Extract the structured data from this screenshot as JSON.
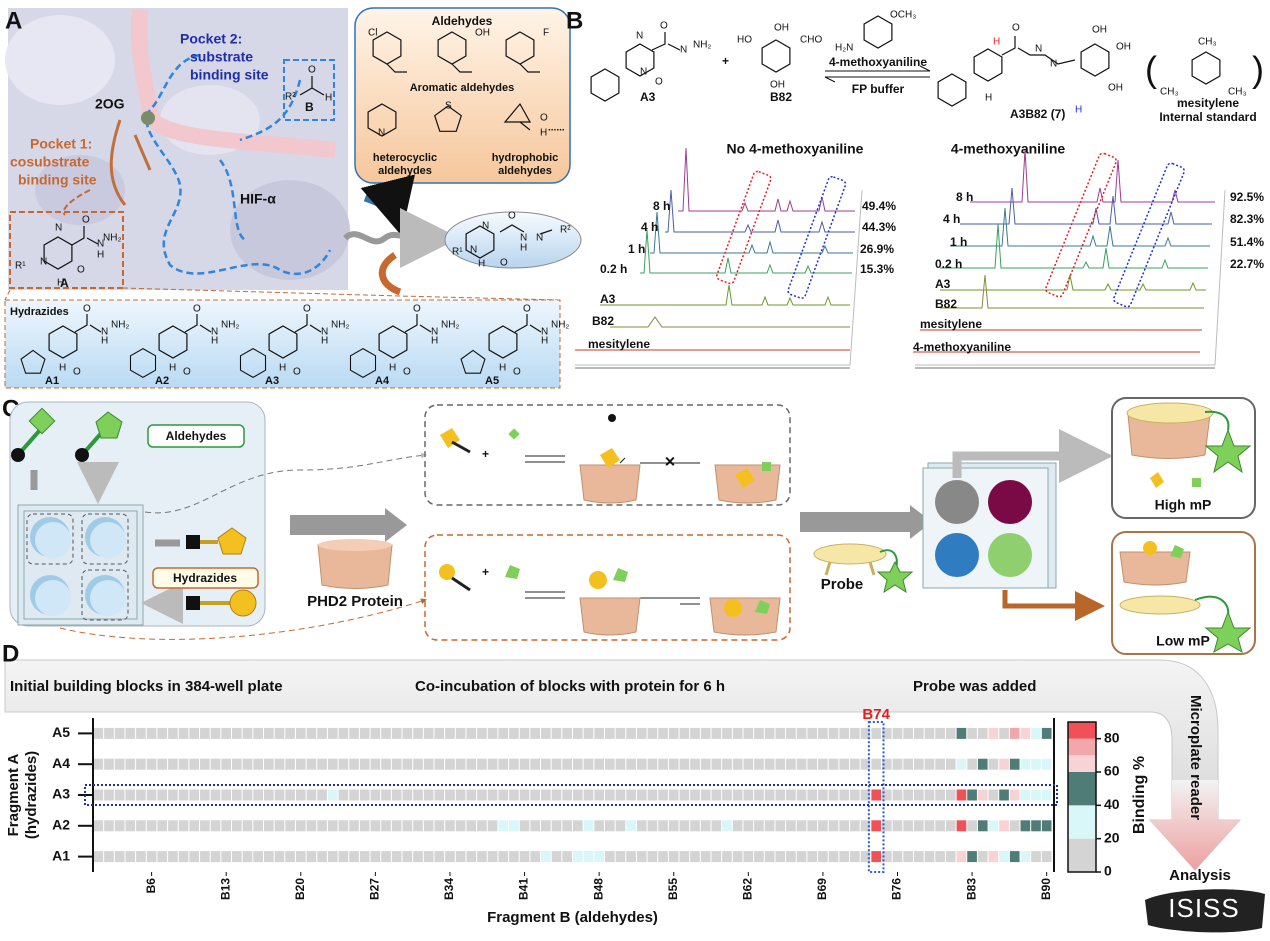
{
  "panel_a": {
    "label": "A",
    "pocket2": [
      "Pocket 2:",
      "substrate",
      "binding site"
    ],
    "cofactor": "2OG",
    "pocket1": [
      "Pocket 1:",
      "cosubstrate",
      "binding site"
    ],
    "protein": "HIF-α",
    "core_a": {
      "name": "A",
      "atoms": [
        "R¹",
        "N",
        "N",
        "H",
        "O",
        "O",
        "N",
        "H",
        "NH₂"
      ]
    },
    "core_b": {
      "name": "B",
      "atoms": [
        "R²",
        "O",
        "H"
      ]
    },
    "aldehydes": {
      "title": "Aldehydes",
      "atoms": [
        "Cl",
        "OH",
        "F",
        "N",
        "S",
        "O",
        "H"
      ],
      "aromatic": "Aromatic aldehydes",
      "heterocyclic": [
        "heterocyclic",
        "aldehydes"
      ],
      "hydrophobic": [
        "hydrophobic",
        "aldehydes"
      ]
    },
    "product_atoms": [
      "R¹",
      "N",
      "N",
      "H",
      "O",
      "O",
      "N",
      "H",
      "N",
      "R²"
    ],
    "hydrazides": {
      "title": "Hydrazides",
      "atoms": [
        "O",
        "N",
        "H",
        "NH₂"
      ],
      "names": [
        "A1",
        "A2",
        "A3",
        "A4",
        "A5"
      ]
    }
  },
  "panel_b": {
    "label": "B",
    "reactant_a": "A3",
    "reactant_b": "B82",
    "plus": "+",
    "b82_atoms": [
      "HO",
      "OH",
      "OH",
      "CHO"
    ],
    "reagent": "4-methoxyaniline",
    "reagent_atoms": [
      "OCH₃",
      "H₂N"
    ],
    "buffer": "FP buffer",
    "product": "A3B82 (7)",
    "product_atoms": [
      "H",
      "H",
      "O",
      "OH",
      "OH",
      "OH",
      "N",
      "N",
      "H"
    ],
    "standard": {
      "name": "mesitylene",
      "role": "Internal standard",
      "atoms": [
        "CH₃"
      ]
    },
    "left": {
      "title": "No 4-methoxyaniline",
      "traces": [
        {
          "name": "8 h",
          "yield": "49.4%"
        },
        {
          "name": "4 h",
          "yield": "44.3%"
        },
        {
          "name": "1 h",
          "yield": "26.9%"
        },
        {
          "name": "0.2 h",
          "yield": "15.3%"
        },
        {
          "name": "A3"
        },
        {
          "name": "B82"
        },
        {
          "name": "mesitylene"
        }
      ]
    },
    "right": {
      "title": "4-methoxyaniline",
      "traces": [
        {
          "name": "8 h",
          "yield": "92.5%"
        },
        {
          "name": "4 h",
          "yield": "82.3%"
        },
        {
          "name": "1 h",
          "yield": "51.4%"
        },
        {
          "name": "0.2 h",
          "yield": "22.7%"
        },
        {
          "name": "A3"
        },
        {
          "name": "B82"
        },
        {
          "name": "mesitylene"
        },
        {
          "name": "4-methoxyaniline"
        }
      ]
    }
  },
  "panel_c": {
    "label": "C",
    "aldehydes": "Aldehydes",
    "hydrazides": "Hydrazides",
    "protein": "PHD2 Protein",
    "probe": "Probe",
    "high": "High mP",
    "low": "Low mP",
    "plus": "+"
  },
  "panel_d": {
    "label": "D",
    "steps": [
      "Initial building blocks in 384-well plate",
      "Co-incubation of blocks with protein for 6 h",
      "Probe was added"
    ],
    "reader": "Microplate reader",
    "analysis": "Analysis",
    "watermark": "ISISS"
  },
  "chart_data": {
    "type": "heatmap",
    "x_label": "Fragment B (aldehydes)",
    "y_label": [
      "Fragment A",
      "(hydrazides)"
    ],
    "y_categories": [
      "A1",
      "A2",
      "A3",
      "A4",
      "A5"
    ],
    "xlim": [
      0.5,
      90.5
    ],
    "xticks": [
      {
        "value": 6,
        "label": "B6"
      },
      {
        "value": 13,
        "label": "B13"
      },
      {
        "value": 20,
        "label": "B20"
      },
      {
        "value": 27,
        "label": "B27"
      },
      {
        "value": 34,
        "label": "B34"
      },
      {
        "value": 41,
        "label": "B41"
      },
      {
        "value": 48,
        "label": "B48"
      },
      {
        "value": 55,
        "label": "B55"
      },
      {
        "value": 62,
        "label": "B62"
      },
      {
        "value": 69,
        "label": "B69"
      },
      {
        "value": 76,
        "label": "B76"
      },
      {
        "value": 83,
        "label": "B83"
      },
      {
        "value": 90,
        "label": "B90"
      }
    ],
    "rows": [
      [
        10,
        10,
        10,
        10,
        10,
        10,
        10,
        10,
        10,
        10,
        10,
        10,
        10,
        10,
        10,
        10,
        10,
        10,
        10,
        10,
        10,
        10,
        10,
        10,
        10,
        10,
        10,
        10,
        10,
        10,
        10,
        10,
        10,
        10,
        10,
        10,
        10,
        10,
        10,
        10,
        10,
        10,
        30,
        10,
        10,
        30,
        30,
        30,
        10,
        10,
        10,
        10,
        10,
        10,
        10,
        10,
        10,
        10,
        10,
        10,
        10,
        10,
        10,
        10,
        10,
        10,
        10,
        10,
        10,
        10,
        10,
        10,
        10,
        85,
        10,
        10,
        10,
        10,
        10,
        10,
        10,
        65,
        50,
        10,
        65,
        30,
        50,
        30,
        10,
        10
      ],
      [
        10,
        10,
        10,
        10,
        10,
        10,
        10,
        10,
        10,
        10,
        10,
        10,
        10,
        10,
        10,
        10,
        10,
        10,
        10,
        10,
        10,
        10,
        10,
        10,
        10,
        10,
        10,
        10,
        10,
        10,
        10,
        10,
        10,
        10,
        10,
        10,
        10,
        10,
        30,
        30,
        10,
        10,
        10,
        10,
        10,
        10,
        30,
        10,
        10,
        10,
        30,
        10,
        10,
        10,
        10,
        10,
        10,
        10,
        10,
        30,
        10,
        10,
        10,
        10,
        10,
        10,
        10,
        10,
        10,
        10,
        10,
        10,
        10,
        85,
        10,
        10,
        10,
        10,
        10,
        10,
        10,
        85,
        10,
        50,
        30,
        65,
        10,
        50,
        50,
        50
      ],
      [
        10,
        10,
        10,
        10,
        10,
        10,
        10,
        10,
        10,
        10,
        10,
        10,
        10,
        10,
        10,
        10,
        10,
        10,
        10,
        10,
        10,
        10,
        30,
        10,
        10,
        10,
        10,
        10,
        10,
        10,
        10,
        10,
        10,
        10,
        10,
        10,
        10,
        10,
        10,
        10,
        10,
        10,
        10,
        10,
        10,
        10,
        10,
        10,
        10,
        10,
        10,
        10,
        10,
        10,
        10,
        10,
        10,
        10,
        10,
        10,
        10,
        10,
        10,
        10,
        10,
        10,
        10,
        10,
        10,
        10,
        10,
        10,
        10,
        85,
        10,
        10,
        10,
        10,
        10,
        10,
        10,
        85,
        50,
        65,
        10,
        50,
        65,
        30,
        30,
        30
      ],
      [
        10,
        10,
        10,
        10,
        10,
        10,
        10,
        10,
        10,
        10,
        10,
        10,
        10,
        10,
        10,
        10,
        10,
        10,
        10,
        10,
        10,
        10,
        10,
        10,
        10,
        10,
        10,
        10,
        10,
        10,
        10,
        10,
        10,
        10,
        10,
        10,
        10,
        10,
        10,
        10,
        10,
        10,
        10,
        10,
        10,
        10,
        10,
        10,
        10,
        10,
        10,
        10,
        10,
        10,
        10,
        10,
        10,
        10,
        10,
        10,
        10,
        10,
        10,
        10,
        10,
        10,
        10,
        10,
        10,
        10,
        10,
        10,
        10,
        10,
        10,
        10,
        10,
        10,
        10,
        10,
        10,
        30,
        10,
        50,
        10,
        65,
        50,
        30,
        30,
        30
      ],
      [
        10,
        10,
        10,
        10,
        10,
        10,
        10,
        10,
        10,
        10,
        10,
        10,
        10,
        10,
        10,
        10,
        10,
        10,
        10,
        10,
        10,
        10,
        10,
        10,
        10,
        10,
        10,
        10,
        10,
        10,
        10,
        10,
        10,
        10,
        10,
        10,
        10,
        10,
        10,
        10,
        10,
        10,
        10,
        10,
        10,
        10,
        10,
        10,
        10,
        10,
        10,
        10,
        10,
        10,
        10,
        10,
        10,
        10,
        10,
        10,
        10,
        10,
        10,
        10,
        10,
        10,
        10,
        10,
        10,
        10,
        10,
        10,
        10,
        10,
        10,
        10,
        10,
        10,
        10,
        10,
        10,
        50,
        10,
        10,
        65,
        10,
        75,
        65,
        30,
        50
      ]
    ],
    "highlight": {
      "label": "B74",
      "column": 74,
      "row": "A3"
    },
    "colorbar": {
      "label": "Binding %",
      "lim": [
        0,
        90
      ],
      "ticks": [
        0,
        20,
        40,
        60,
        80
      ],
      "bands": [
        {
          "from": 0,
          "to": 20,
          "color": "#d4d4d4"
        },
        {
          "from": 20,
          "to": 40,
          "color": "#d9f6f8"
        },
        {
          "from": 40,
          "to": 60,
          "color": "#4f7c77"
        },
        {
          "from": 60,
          "to": 70,
          "color": "#f8d3d5"
        },
        {
          "from": 70,
          "to": 80,
          "color": "#f2a7aa"
        },
        {
          "from": 80,
          "to": 90,
          "color": "#f05058"
        }
      ]
    }
  }
}
